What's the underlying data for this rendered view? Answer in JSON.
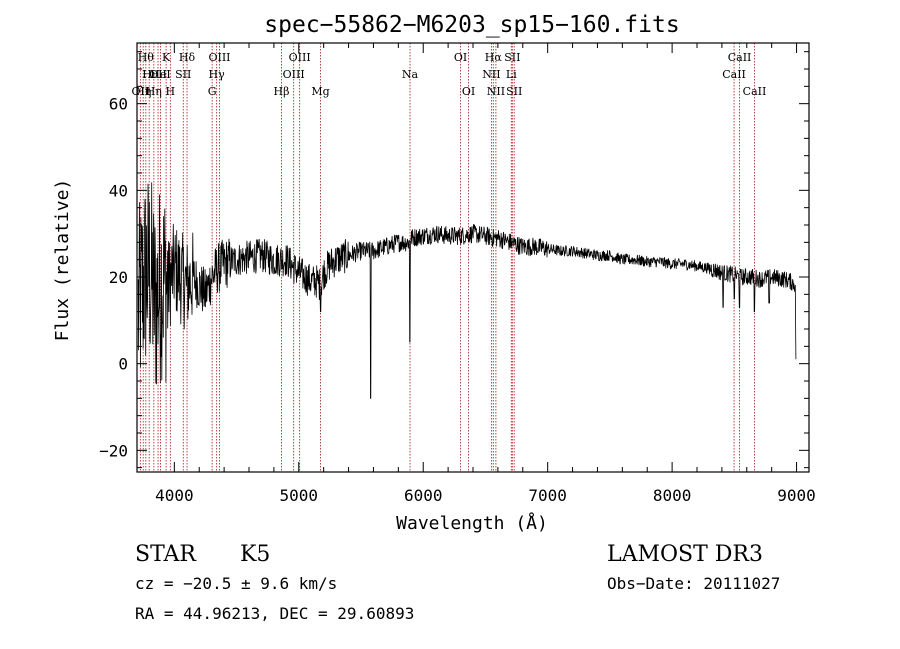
{
  "chart_data": {
    "type": "line",
    "title": "spec−55862−M6203_sp15−160.fits",
    "xlabel": "Wavelength (Å)",
    "ylabel": "Flux (relative)",
    "xlim": [
      3700,
      9100
    ],
    "ylim": [
      -25,
      74
    ],
    "x_ticks": [
      4000,
      5000,
      6000,
      7000,
      8000,
      9000
    ],
    "y_ticks": [
      -20,
      0,
      20,
      40,
      60
    ],
    "x_tick_labels": [
      "4000",
      "5000",
      "6000",
      "7000",
      "8000",
      "9000"
    ],
    "y_tick_labels": [
      "−20",
      "0",
      "20",
      "40",
      "60"
    ],
    "spectrum_anchor_points": {
      "x": [
        3710,
        3760,
        3800,
        3850,
        3900,
        3950,
        4000,
        4050,
        4100,
        4150,
        4200,
        4250,
        4300,
        4350,
        4400,
        4500,
        4600,
        4700,
        4800,
        4900,
        5000,
        5050,
        5100,
        5150,
        5175,
        5200,
        5250,
        5300,
        5400,
        5500,
        5600,
        5700,
        5800,
        5890,
        5900,
        6000,
        6100,
        6200,
        6300,
        6400,
        6500,
        6560,
        6600,
        6700,
        6800,
        6900,
        7000,
        7100,
        7200,
        7300,
        7400,
        7500,
        7600,
        7700,
        7800,
        7900,
        8000,
        8100,
        8200,
        8300,
        8400,
        8500,
        8540,
        8600,
        8662,
        8700,
        8800,
        8900,
        8950,
        9000
      ],
      "y": [
        12,
        20,
        22,
        14,
        20,
        18,
        22,
        20,
        18,
        20,
        18,
        16,
        20,
        22,
        23,
        24,
        24.5,
        25,
        24,
        24,
        21,
        20,
        19,
        19,
        18,
        21,
        23,
        24,
        25,
        26,
        26,
        27,
        28,
        28,
        29,
        29.5,
        30,
        29.5,
        29.5,
        30,
        29.5,
        29,
        29,
        28,
        27,
        27,
        26.5,
        26,
        26,
        25.5,
        25,
        25,
        24,
        24,
        23.5,
        23.5,
        23,
        23,
        22.5,
        22,
        21,
        20.5,
        20,
        20,
        20,
        19.5,
        20,
        19.5,
        19,
        18
      ]
    },
    "absorption_features": [
      {
        "x": 5175,
        "y": 12
      },
      {
        "x": 5578,
        "y": -8
      },
      {
        "x": 5892,
        "y": 5
      },
      {
        "x": 8410,
        "y": 13
      },
      {
        "x": 8500,
        "y": 15
      },
      {
        "x": 8542,
        "y": 13
      },
      {
        "x": 8662,
        "y": 12
      },
      {
        "x": 8780,
        "y": 14
      }
    ],
    "spectral_lines": [
      {
        "x": 3727,
        "label": "OII",
        "row": 2
      },
      {
        "x": 3750,
        "label": "Hη",
        "row": 2
      },
      {
        "x": 3771,
        "label": "Hθ",
        "row": 0
      },
      {
        "x": 3798,
        "label": "Hι",
        "row": 1
      },
      {
        "x": 3835,
        "label": "Hη",
        "row": 2
      },
      {
        "x": 3869,
        "label": "OII",
        "row": 1
      },
      {
        "x": 3889,
        "label": "HeI",
        "row": 1
      },
      {
        "x": 3934,
        "label": "K",
        "row": 0
      },
      {
        "x": 3968,
        "label": "H",
        "row": 2
      },
      {
        "x": 4072,
        "label": "SII",
        "row": 1
      },
      {
        "x": 4102,
        "label": "Hδ",
        "row": 0
      },
      {
        "x": 4304,
        "label": "G",
        "row": 2
      },
      {
        "x": 4340,
        "label": "Hγ",
        "row": 1
      },
      {
        "x": 4363,
        "label": "OIII",
        "row": 0
      },
      {
        "x": 4861,
        "label": "Hβ",
        "row": 2
      },
      {
        "x": 4959,
        "label": "OIII",
        "row": 1
      },
      {
        "x": 5007,
        "label": "OIII",
        "row": 0
      },
      {
        "x": 5175,
        "label": "Mg",
        "row": 2
      },
      {
        "x": 5894,
        "label": "Na",
        "row": 1
      },
      {
        "x": 6300,
        "label": "OI",
        "row": 0
      },
      {
        "x": 6364,
        "label": "OI",
        "row": 2
      },
      {
        "x": 6548,
        "label": "NII",
        "row": 1
      },
      {
        "x": 6563,
        "label": "Hα",
        "row": 0
      },
      {
        "x": 6584,
        "label": "NII",
        "row": 2
      },
      {
        "x": 6708,
        "label": "Li",
        "row": 1
      },
      {
        "x": 6716,
        "label": "SII",
        "row": 0
      },
      {
        "x": 6731,
        "label": "SII",
        "row": 2
      },
      {
        "x": 8498,
        "label": "CaII",
        "row": 1
      },
      {
        "x": 8542,
        "label": "CaII",
        "row": 0
      },
      {
        "x": 8662,
        "label": "CaII",
        "row": 2
      }
    ]
  },
  "info": {
    "class": "STAR",
    "subclass": "K5",
    "survey": "LAMOST DR3",
    "cz": "cz = −20.5 ± 9.6 km/s",
    "obs_date": "Obs−Date: 20111027",
    "coords": "RA =  44.96213, DEC =  29.60893"
  },
  "colors": {
    "line_marker": "#b03030",
    "spectrum": "#000000"
  }
}
